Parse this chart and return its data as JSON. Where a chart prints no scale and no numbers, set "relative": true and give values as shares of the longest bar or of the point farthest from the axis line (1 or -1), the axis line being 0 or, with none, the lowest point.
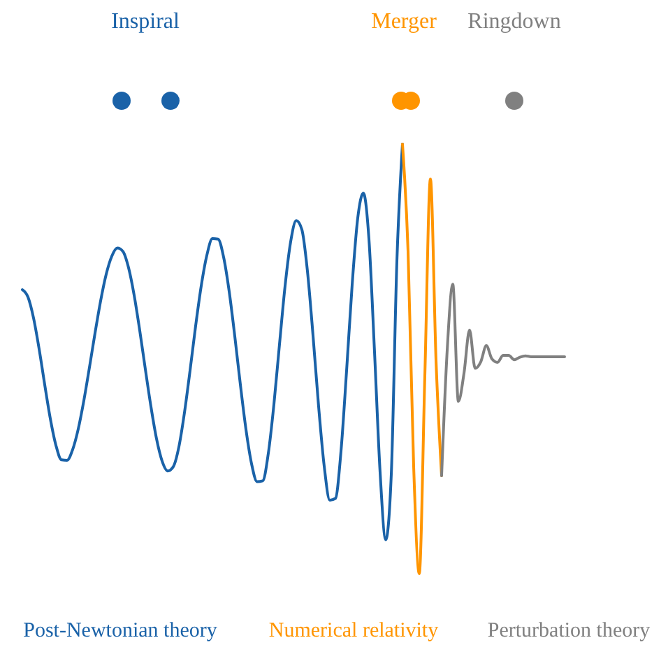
{
  "chart_data": {
    "type": "line",
    "relative": true,
    "categories": [
      null,
      null,
      null,
      null,
      null,
      null,
      null,
      null,
      null,
      null,
      null,
      null,
      null,
      null,
      null,
      null,
      null,
      null,
      null,
      null,
      null,
      null,
      null,
      null,
      null,
      null,
      null,
      null,
      null,
      null,
      null,
      null,
      null,
      null,
      null,
      null,
      null,
      null,
      null,
      null,
      null,
      null,
      null,
      null,
      null,
      null,
      null,
      null,
      null,
      null,
      null,
      null,
      null,
      null,
      null,
      null,
      null,
      null,
      null,
      null,
      null,
      null,
      null,
      null,
      null,
      null,
      null,
      null,
      null,
      null,
      null,
      null,
      null,
      null,
      null,
      null,
      null,
      null,
      null,
      null,
      null,
      null,
      null,
      null,
      null,
      null,
      null,
      null,
      null,
      null,
      null,
      null,
      null,
      null,
      null,
      null,
      null,
      null
    ],
    "series": [
      {
        "name": "Inspiral",
        "color": "#1a62a8",
        "values": [
          0.661,
          0.644,
          0.595,
          0.523,
          0.44,
          0.361,
          0.299,
          0.265,
          0.264,
          0.289,
          0.337,
          0.403,
          0.48,
          0.56,
          0.635,
          0.697,
          0.739,
          0.758,
          0.75,
          0.712,
          0.648,
          0.566,
          0.476,
          0.389,
          0.314,
          0.262,
          0.239,
          0.249,
          0.295,
          0.375,
          0.473,
          0.577,
          0.67,
          0.741,
          0.78,
          0.779,
          0.737,
          0.657,
          0.553,
          0.44,
          0.336,
          0.256,
          0.214,
          0.216,
          0.28,
          0.394,
          0.534,
          0.67,
          0.773,
          0.822,
          0.801,
          0.704,
          0.554,
          0.389,
          0.25,
          0.171,
          0.175,
          0.285,
          0.472,
          0.673,
          0.828,
          0.886,
          0.779,
          0.516,
          0.235,
          0.079,
          0.232,
          0.727,
          1,
          null,
          null,
          null,
          null,
          null,
          null,
          null,
          null,
          null,
          null,
          null,
          null,
          null,
          null,
          null,
          null,
          null,
          null,
          null,
          null,
          null,
          null,
          null,
          null,
          null,
          null,
          null,
          null,
          null
        ]
      },
      {
        "name": "Merger",
        "color": "#ff9500",
        "values": [
          null,
          null,
          null,
          null,
          null,
          null,
          null,
          null,
          null,
          null,
          null,
          null,
          null,
          null,
          null,
          null,
          null,
          null,
          null,
          null,
          null,
          null,
          null,
          null,
          null,
          null,
          null,
          null,
          null,
          null,
          null,
          null,
          null,
          null,
          null,
          null,
          null,
          null,
          null,
          null,
          null,
          null,
          null,
          null,
          null,
          null,
          null,
          null,
          null,
          null,
          null,
          null,
          null,
          null,
          null,
          null,
          null,
          null,
          null,
          null,
          null,
          null,
          null,
          null,
          null,
          null,
          null,
          null,
          1,
          0.75,
          0.25,
          0,
          0.46,
          0.919,
          0.497,
          0.228,
          null,
          null,
          null,
          null,
          null,
          null,
          null,
          null,
          null,
          null,
          null,
          null,
          null,
          null,
          null,
          null,
          null,
          null,
          null,
          null,
          null,
          null
        ]
      },
      {
        "name": "Ringdown",
        "color": "#808080",
        "values": [
          null,
          null,
          null,
          null,
          null,
          null,
          null,
          null,
          null,
          null,
          null,
          null,
          null,
          null,
          null,
          null,
          null,
          null,
          null,
          null,
          null,
          null,
          null,
          null,
          null,
          null,
          null,
          null,
          null,
          null,
          null,
          null,
          null,
          null,
          null,
          null,
          null,
          null,
          null,
          null,
          null,
          null,
          null,
          null,
          null,
          null,
          null,
          null,
          null,
          null,
          null,
          null,
          null,
          null,
          null,
          null,
          null,
          null,
          null,
          null,
          null,
          null,
          null,
          null,
          null,
          null,
          null,
          null,
          null,
          null,
          null,
          null,
          null,
          null,
          null,
          0.228,
          0.52,
          0.674,
          0.401,
          0.466,
          0.567,
          0.478,
          0.493,
          0.531,
          0.5,
          0.492,
          0.508,
          0.508,
          0.498,
          0.504,
          0.507,
          0.505,
          0.505,
          0.505,
          0.505,
          0.505,
          0.505,
          0.505
        ]
      }
    ],
    "annotations": [
      "Post-Newtonian theory",
      "Numerical relativity",
      "Perturbation theory"
    ]
  }
}
